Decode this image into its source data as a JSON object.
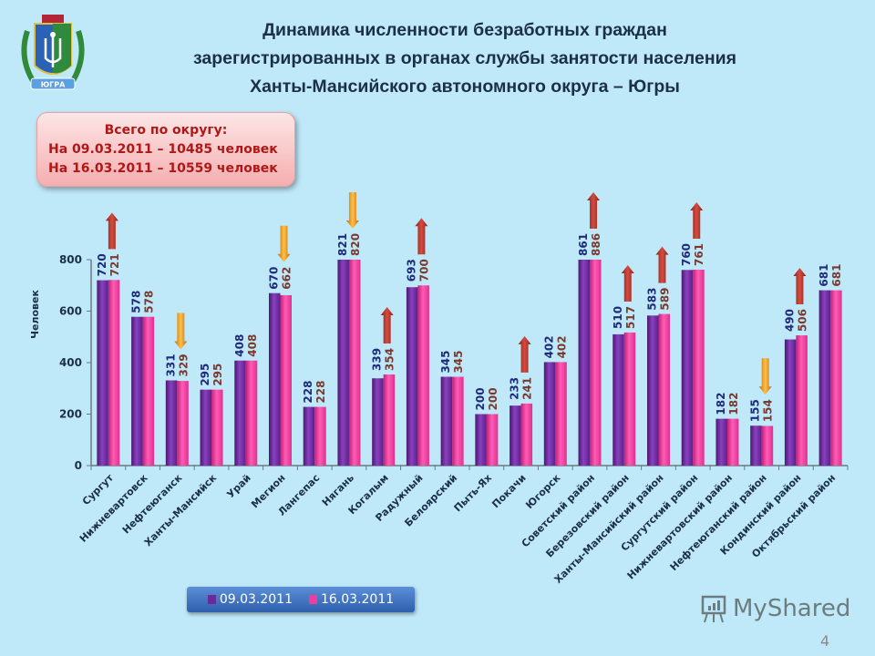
{
  "header": {
    "title_lines": [
      "Динамика численности безработных граждан",
      "зарегистрированных в органах службы занятости населения",
      "Ханты-Мансийского автономного округа – Югры"
    ],
    "emblem_text": "ЮГРА"
  },
  "totals_box": {
    "heading": "Всего по округу:",
    "line1": "На 09.03.2011 – 10485  человек",
    "line2": "На 16.03.2011 – 10559 человек"
  },
  "chart_data": {
    "type": "bar",
    "title": "",
    "xlabel": "",
    "ylabel": "Человек",
    "ylim": [
      0,
      800
    ],
    "yticks": [
      0,
      200,
      400,
      600,
      800
    ],
    "grid": false,
    "legend_placement": "bottom",
    "categories": [
      "Сургут",
      "Нижневартовск",
      "Нефтеюганск",
      "Ханты-Мансийск",
      "Урай",
      "Мегион",
      "Лангепас",
      "Нягань",
      "Когалым",
      "Радужный",
      "Белоярский",
      "Пыть-Ях",
      "Покачи",
      "Югорск",
      "Советский район",
      "Березовский район",
      "Ханты-Мансийский район",
      "Сургутский район",
      "Нижневартовский район",
      "Нефтеюганский район",
      "Кондинский район",
      "Октябрьский район"
    ],
    "series": [
      {
        "name": "09.03.2011",
        "color": "#6a2a9a",
        "values": [
          720,
          578,
          331,
          295,
          408,
          670,
          228,
          821,
          339,
          693,
          345,
          200,
          233,
          402,
          861,
          510,
          583,
          760,
          182,
          155,
          490,
          681
        ]
      },
      {
        "name": "16.03.2011",
        "color": "#f03c9c",
        "values": [
          721,
          578,
          329,
          295,
          408,
          662,
          228,
          820,
          354,
          700,
          345,
          200,
          241,
          402,
          886,
          517,
          589,
          761,
          182,
          154,
          506,
          681
        ]
      }
    ],
    "change_arrow_colors": {
      "up": "#b8352c",
      "down": "#f09a1c"
    }
  },
  "watermark": {
    "brand": "MyShared",
    "page_number": "4"
  }
}
